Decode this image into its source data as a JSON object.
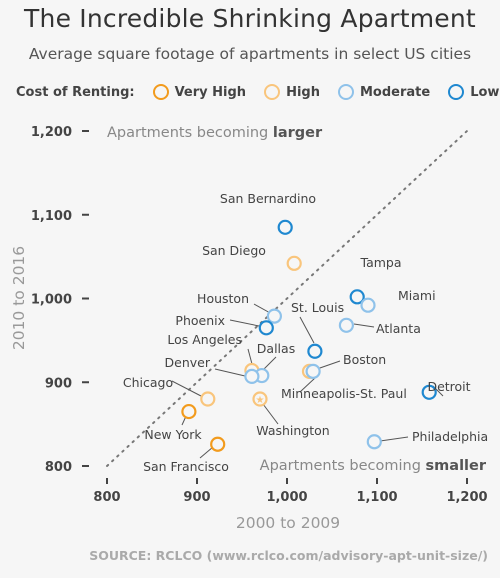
{
  "header": {
    "title": "The Incredible Shrinking Apartment",
    "subtitle": "Average square footage of apartments in select US cities"
  },
  "legend": {
    "title": "Cost of Renting:",
    "items": [
      {
        "label": "Very High",
        "color": "#f29b1d"
      },
      {
        "label": "High",
        "color": "#f9c57c"
      },
      {
        "label": "Moderate",
        "color": "#8fc2ea"
      },
      {
        "label": "Low",
        "color": "#1f88d0"
      }
    ]
  },
  "annotations": {
    "larger_prefix": "Apartments becoming ",
    "larger_bold": "larger",
    "smaller_prefix": "Apartments becoming ",
    "smaller_bold": "smaller"
  },
  "source": "SOURCE: RCLCO (www.rclco.com/advisory-apt-unit-size/)",
  "chart_data": {
    "type": "scatter",
    "xlabel": "2000 to 2009",
    "ylabel": "2010 to 2016",
    "xlim": [
      800,
      1200
    ],
    "ylim": [
      800,
      1200
    ],
    "xticks": [
      "800",
      "900",
      "1,000",
      "1,100",
      "1,200"
    ],
    "yticks": [
      "800",
      "900",
      "1,000",
      "1,100",
      "1,200"
    ],
    "reference_line": "y = x",
    "points": [
      {
        "label": "San Bernardino",
        "x": 998,
        "y": 1085,
        "category": "Low"
      },
      {
        "label": "San Diego",
        "x": 1008,
        "y": 1042,
        "category": "High"
      },
      {
        "label": "Tampa",
        "x": 1078,
        "y": 1002,
        "category": "Low"
      },
      {
        "label": "Miami",
        "x": 1090,
        "y": 992,
        "category": "Moderate"
      },
      {
        "label": "Houston",
        "x": 986,
        "y": 979,
        "category": "Moderate"
      },
      {
        "label": "Phoenix",
        "x": 977,
        "y": 965,
        "category": "Low"
      },
      {
        "label": "St. Louis",
        "x": 1031,
        "y": 937,
        "category": "Low"
      },
      {
        "label": "Atlanta",
        "x": 1066,
        "y": 968,
        "category": "Moderate"
      },
      {
        "label": "Los Angeles",
        "x": 961,
        "y": 914,
        "category": "High"
      },
      {
        "label": "Dallas",
        "x": 972,
        "y": 908,
        "category": "Moderate"
      },
      {
        "label": "Denver",
        "x": 961,
        "y": 907,
        "category": "Moderate"
      },
      {
        "label": "Boston",
        "x": 1025,
        "y": 913,
        "category": "High"
      },
      {
        "label": "Minneapolis-St. Paul",
        "x": 1029,
        "y": 913,
        "category": "Moderate"
      },
      {
        "label": "Detroit",
        "x": 1158,
        "y": 888,
        "category": "Low"
      },
      {
        "label": "Chicago",
        "x": 912,
        "y": 880,
        "category": "High"
      },
      {
        "label": "Washington",
        "x": 970,
        "y": 880,
        "category": "High",
        "marker": "star"
      },
      {
        "label": "New York",
        "x": 891,
        "y": 865,
        "category": "Very High"
      },
      {
        "label": "San Francisco",
        "x": 923,
        "y": 826,
        "category": "Very High"
      },
      {
        "label": "Philadelphia",
        "x": 1097,
        "y": 829,
        "category": "Moderate"
      }
    ]
  }
}
